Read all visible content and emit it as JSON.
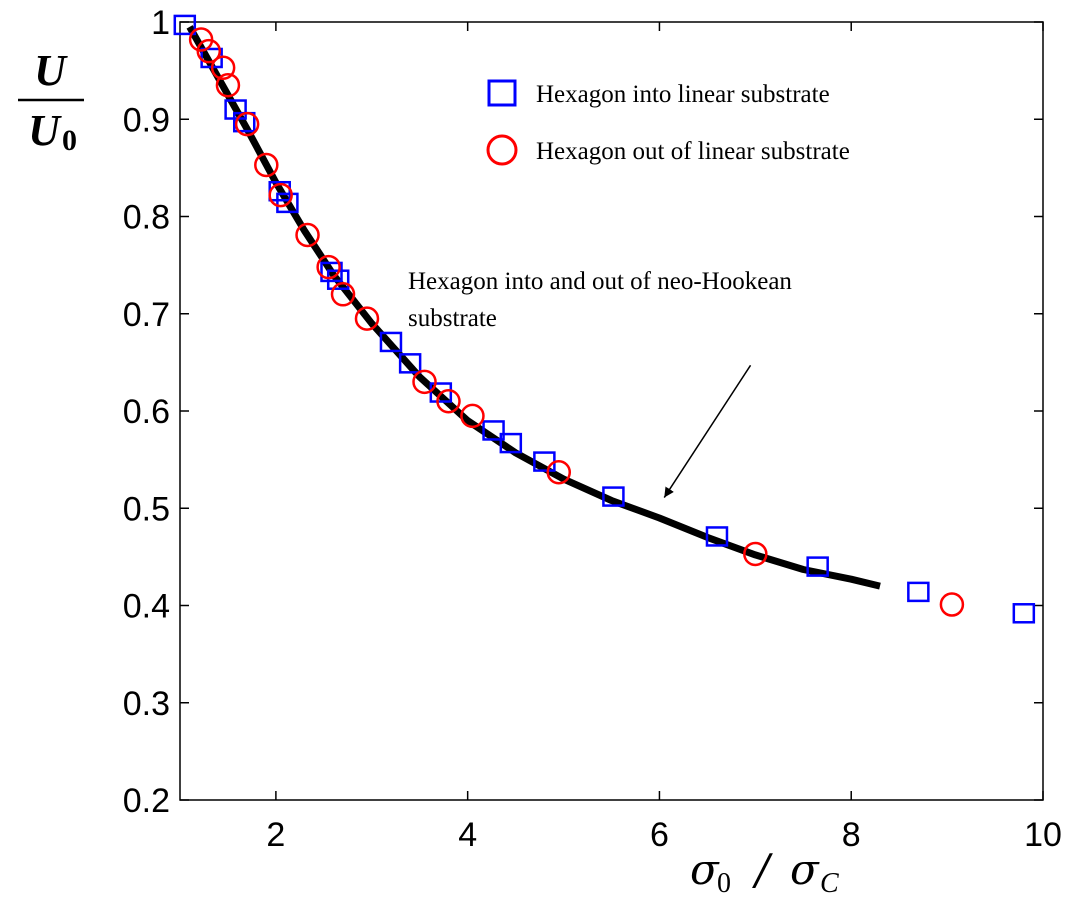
{
  "chart_data": {
    "type": "scatter",
    "xlabel": {
      "main": "σ",
      "sub": "0",
      "sep": " / ",
      "main2": "σ",
      "sub2": "C"
    },
    "ylabel": {
      "numerator": "U",
      "denominator": "U",
      "sub": "0"
    },
    "xlim": [
      1,
      10
    ],
    "ylim": [
      0.2,
      1
    ],
    "xticks": [
      2,
      4,
      6,
      8,
      10
    ],
    "yticks": [
      0.2,
      0.3,
      0.4,
      0.5,
      0.6,
      0.7,
      0.8,
      0.9,
      1
    ],
    "xtick_labels": [
      "2",
      "4",
      "6",
      "8",
      "10"
    ],
    "ytick_labels": [
      "0.2",
      "0.3",
      "0.4",
      "0.5",
      "0.6",
      "0.7",
      "0.8",
      "0.9",
      "1"
    ],
    "legend": {
      "placement": "top-right",
      "entries": [
        {
          "label": "Hexagon into linear substrate",
          "marker": "square",
          "color": "#0000ff"
        },
        {
          "label": "Hexagon out of linear substrate",
          "marker": "circle",
          "color": "#ff0000"
        }
      ]
    },
    "annotation": {
      "line1": "Hexagon into and out of neo-Hookean",
      "line2": "substrate",
      "arrow_from": [
        6.95,
        0.647
      ],
      "arrow_to": [
        6.05,
        0.511
      ]
    },
    "series": [
      {
        "name": "Hexagon into linear substrate",
        "marker": "square",
        "color": "#0000ff",
        "x": [
          1.05,
          1.33,
          1.58,
          1.67,
          2.04,
          2.12,
          2.58,
          2.65,
          3.2,
          3.4,
          3.72,
          4.27,
          4.45,
          4.8,
          5.52,
          6.6,
          7.65,
          8.7,
          9.8
        ],
        "y": [
          0.997,
          0.963,
          0.91,
          0.897,
          0.826,
          0.814,
          0.743,
          0.735,
          0.671,
          0.649,
          0.619,
          0.58,
          0.567,
          0.548,
          0.512,
          0.471,
          0.44,
          0.414,
          0.392
        ]
      },
      {
        "name": "Hexagon out of linear substrate",
        "marker": "circle",
        "color": "#ff0000",
        "x": [
          1.22,
          1.3,
          1.45,
          1.5,
          1.7,
          1.9,
          2.05,
          2.33,
          2.55,
          2.7,
          2.95,
          3.55,
          3.8,
          4.05,
          4.95,
          7.0,
          9.05
        ],
        "y": [
          0.982,
          0.97,
          0.953,
          0.935,
          0.895,
          0.853,
          0.822,
          0.781,
          0.748,
          0.72,
          0.695,
          0.63,
          0.61,
          0.595,
          0.537,
          0.453,
          0.401
        ]
      },
      {
        "name": "Hexagon into and out of neo-Hookean substrate",
        "marker": "line",
        "color": "#000000",
        "x": [
          1.1,
          1.3,
          1.5,
          1.7,
          2.0,
          2.3,
          2.6,
          3.0,
          3.5,
          4.0,
          4.5,
          5.0,
          5.5,
          6.0,
          6.5,
          7.0,
          7.5,
          8.0,
          8.3
        ],
        "y": [
          0.995,
          0.96,
          0.925,
          0.89,
          0.835,
          0.785,
          0.74,
          0.69,
          0.635,
          0.59,
          0.557,
          0.53,
          0.508,
          0.49,
          0.47,
          0.452,
          0.437,
          0.427,
          0.42
        ]
      }
    ]
  }
}
